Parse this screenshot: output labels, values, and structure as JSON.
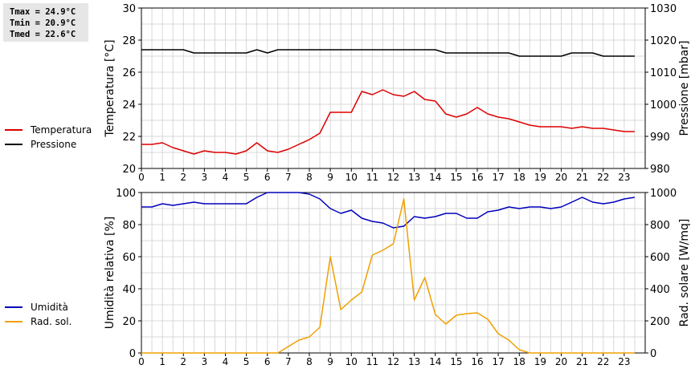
{
  "stats": {
    "tmax": "Tmax = 24.9°C",
    "tmin": "Tmin = 20.9°C",
    "tmed": "Tmed = 22.6°C"
  },
  "colors": {
    "temperature": "#dd0000",
    "pressure": "#000000",
    "humidity": "#0000bb",
    "solar": "#f0a000",
    "grid": "#d8d8d8"
  },
  "legend_top": [
    {
      "label": "Temperatura",
      "color": "#dd0000"
    },
    {
      "label": "Pressione",
      "color": "#000000"
    }
  ],
  "legend_bottom": [
    {
      "label": "Umidità",
      "color": "#0000bb"
    },
    {
      "label": "Rad. sol.",
      "color": "#f0a000"
    }
  ],
  "chart_data": [
    {
      "type": "line",
      "ylabel_left": "Temperatura [°C]",
      "ylabel_right": "Pressione [mbar]",
      "xlim": [
        0,
        24
      ],
      "ylim_left": [
        20,
        30
      ],
      "ylim_right": [
        980,
        1030
      ],
      "yticks_left": [
        "20",
        "22",
        "24",
        "26",
        "28",
        "30"
      ],
      "yticks_right": [
        "980",
        "990",
        "1000",
        "1010",
        "1020",
        "1030"
      ],
      "xticks": [
        "0",
        "1",
        "2",
        "3",
        "4",
        "5",
        "6",
        "7",
        "8",
        "9",
        "10",
        "11",
        "12",
        "13",
        "14",
        "15",
        "16",
        "17",
        "18",
        "19",
        "20",
        "21",
        "22",
        "23"
      ],
      "grid": true,
      "series": [
        {
          "name": "Temperatura",
          "axis": "left",
          "color": "#dd0000",
          "x": [
            0,
            0.5,
            1,
            1.5,
            2,
            2.5,
            3,
            3.5,
            4,
            4.5,
            5,
            5.5,
            6,
            6.5,
            7,
            7.5,
            8,
            8.5,
            9,
            9.5,
            10,
            10.5,
            11,
            11.5,
            12,
            12.5,
            13,
            13.5,
            14,
            14.5,
            15,
            15.5,
            16,
            16.5,
            17,
            17.5,
            18,
            18.5,
            19,
            19.5,
            20,
            20.5,
            21,
            21.5,
            22,
            22.5,
            23,
            23.5
          ],
          "y": [
            21.5,
            21.5,
            21.6,
            21.3,
            21.1,
            20.9,
            21.1,
            21.0,
            21.0,
            20.9,
            21.1,
            21.6,
            21.1,
            21.0,
            21.2,
            21.5,
            21.8,
            22.2,
            23.5,
            23.5,
            23.5,
            24.8,
            24.6,
            24.9,
            24.6,
            24.5,
            24.8,
            24.3,
            24.2,
            23.4,
            23.2,
            23.4,
            23.8,
            23.4,
            23.2,
            23.1,
            22.9,
            22.7,
            22.6,
            22.6,
            22.6,
            22.5,
            22.6,
            22.5,
            22.5,
            22.4,
            22.3,
            22.3
          ]
        },
        {
          "name": "Pressione",
          "axis": "right",
          "color": "#000000",
          "x": [
            0,
            0.5,
            1,
            1.5,
            2,
            2.5,
            3,
            3.5,
            4,
            4.5,
            5,
            5.5,
            6,
            6.5,
            7,
            7.5,
            8,
            8.5,
            9,
            9.5,
            10,
            10.5,
            11,
            11.5,
            12,
            12.5,
            13,
            13.5,
            14,
            14.5,
            15,
            15.5,
            16,
            16.5,
            17,
            17.5,
            18,
            18.5,
            19,
            19.5,
            20,
            20.5,
            21,
            21.5,
            22,
            22.5,
            23,
            23.5
          ],
          "y": [
            1017,
            1017,
            1017,
            1017,
            1017,
            1016,
            1016,
            1016,
            1016,
            1016,
            1016,
            1017,
            1016,
            1017,
            1017,
            1017,
            1017,
            1017,
            1017,
            1017,
            1017,
            1017,
            1017,
            1017,
            1017,
            1017,
            1017,
            1017,
            1017,
            1016,
            1016,
            1016,
            1016,
            1016,
            1016,
            1016,
            1015,
            1015,
            1015,
            1015,
            1015,
            1016,
            1016,
            1016,
            1015,
            1015,
            1015,
            1015
          ]
        }
      ]
    },
    {
      "type": "line",
      "ylabel_left": "Umidità relativa [%]",
      "ylabel_right": "Rad. solare [W/mq]",
      "xlim": [
        0,
        24
      ],
      "ylim_left": [
        0,
        100
      ],
      "ylim_right": [
        0,
        1000
      ],
      "yticks_left": [
        "0",
        "20",
        "40",
        "60",
        "80",
        "100"
      ],
      "yticks_right": [
        "0",
        "200",
        "400",
        "600",
        "800",
        "1000"
      ],
      "xticks": [
        "0",
        "1",
        "2",
        "3",
        "4",
        "5",
        "6",
        "7",
        "8",
        "9",
        "10",
        "11",
        "12",
        "13",
        "14",
        "15",
        "16",
        "17",
        "18",
        "19",
        "20",
        "21",
        "22",
        "23"
      ],
      "grid": true,
      "series": [
        {
          "name": "Umidità",
          "axis": "left",
          "color": "#0000bb",
          "x": [
            0,
            0.5,
            1,
            1.5,
            2,
            2.5,
            3,
            3.5,
            4,
            4.5,
            5,
            5.5,
            6,
            6.5,
            7,
            7.5,
            8,
            8.5,
            9,
            9.5,
            10,
            10.5,
            11,
            11.5,
            12,
            12.5,
            13,
            13.5,
            14,
            14.5,
            15,
            15.5,
            16,
            16.5,
            17,
            17.5,
            18,
            18.5,
            19,
            19.5,
            20,
            20.5,
            21,
            21.5,
            22,
            22.5,
            23,
            23.5
          ],
          "y": [
            91,
            91,
            93,
            92,
            93,
            94,
            93,
            93,
            93,
            93,
            93,
            97,
            100,
            100,
            100,
            100,
            99,
            96,
            90,
            87,
            89,
            84,
            82,
            81,
            78,
            79,
            85,
            84,
            85,
            87,
            87,
            84,
            84,
            88,
            89,
            91,
            90,
            91,
            91,
            90,
            91,
            94,
            97,
            94,
            93,
            94,
            96,
            97
          ]
        },
        {
          "name": "Rad. sol.",
          "axis": "right",
          "color": "#f0a000",
          "x": [
            0,
            0.5,
            1,
            1.5,
            2,
            2.5,
            3,
            3.5,
            4,
            4.5,
            5,
            5.5,
            6,
            6.5,
            7,
            7.5,
            8,
            8.5,
            9,
            9.5,
            10,
            10.5,
            11,
            11.5,
            12,
            12.5,
            13,
            13.5,
            14,
            14.5,
            15,
            15.5,
            16,
            16.5,
            17,
            17.5,
            18,
            18.5,
            19,
            19.5,
            20,
            20.5,
            21,
            21.5,
            22,
            22.5,
            23,
            23.5
          ],
          "y": [
            0,
            0,
            0,
            0,
            0,
            0,
            0,
            0,
            0,
            0,
            0,
            0,
            0,
            0,
            40,
            80,
            100,
            160,
            600,
            270,
            330,
            380,
            610,
            640,
            680,
            960,
            330,
            470,
            240,
            180,
            235,
            245,
            250,
            210,
            120,
            80,
            20,
            0,
            0,
            0,
            0,
            0,
            0,
            0,
            0,
            0,
            0,
            0
          ]
        }
      ]
    }
  ]
}
